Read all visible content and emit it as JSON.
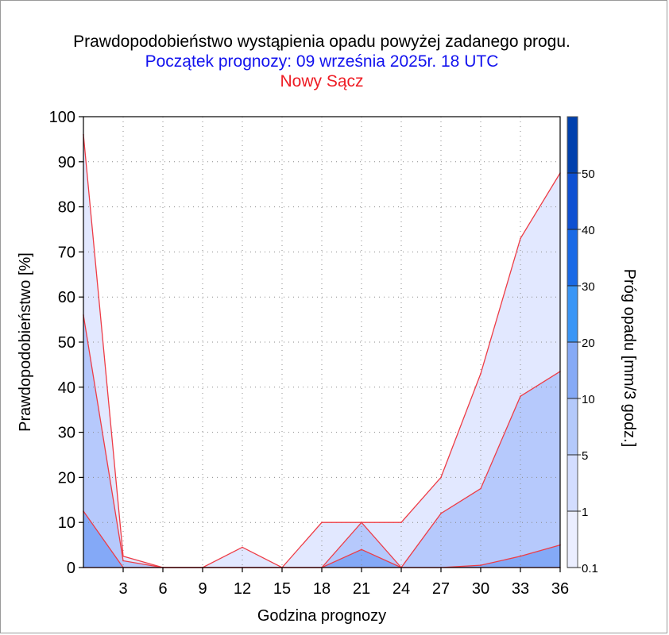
{
  "title": "Prawdopodobieństwo wystąpienia opadu powyżej zadanego progu.",
  "subtitle": "Początek prognozy: 09 września 2025r. 18 UTC",
  "location": "Nowy Sącz",
  "colors": {
    "title": "#000000",
    "subtitle": "#1212ee",
    "location": "#ee1c24",
    "series_line": "#ee3c46"
  },
  "chart_data": {
    "type": "area",
    "title": "Prawdopodobieństwo wystąpienia opadu powyżej zadanego progu.",
    "xlabel": "Godzina prognozy",
    "ylabel": "Prawdopodobieństwo [%]",
    "xlim": [
      0,
      36
    ],
    "ylim": [
      0,
      100
    ],
    "x": [
      0,
      3,
      6,
      9,
      12,
      15,
      18,
      21,
      24,
      27,
      30,
      33,
      36
    ],
    "x_ticks": [
      "3",
      "6",
      "9",
      "12",
      "15",
      "18",
      "21",
      "24",
      "27",
      "30",
      "33",
      "36"
    ],
    "y_ticks": [
      "0",
      "10",
      "20",
      "30",
      "40",
      "50",
      "60",
      "70",
      "80",
      "90",
      "100"
    ],
    "grid": true,
    "series": [
      {
        "threshold": "0.1",
        "color": "#e2e8ff",
        "values": [
          96,
          2.5,
          0,
          0,
          4.5,
          0,
          10,
          10,
          10,
          20,
          43,
          73,
          87.5
        ]
      },
      {
        "threshold": "1",
        "color": "#b6c9fc",
        "values": [
          56,
          1.5,
          0,
          0,
          0,
          0,
          0,
          10,
          0,
          12,
          17.5,
          38,
          43.5
        ]
      },
      {
        "threshold": "5",
        "color": "#84a9f7",
        "values": [
          12.5,
          0,
          0,
          0,
          0,
          0,
          0,
          4,
          0,
          0,
          0.5,
          2.5,
          5
        ]
      },
      {
        "threshold": "10",
        "color": "#5c8bf0",
        "values": [
          0,
          0,
          0,
          0,
          0,
          0,
          0,
          0,
          0,
          0,
          0,
          0,
          0
        ]
      }
    ],
    "colorbar": {
      "label": "Próg opadu [mm/3 godz.]",
      "labels": [
        "0.1",
        "1",
        "5",
        "10",
        "20",
        "30",
        "40",
        "50"
      ],
      "colors": [
        "#ebeeff",
        "#d3ddff",
        "#b4c9fb",
        "#86aaf6",
        "#3a96f6",
        "#1a6ae6",
        "#0e50d2",
        "#0040ad"
      ]
    }
  }
}
